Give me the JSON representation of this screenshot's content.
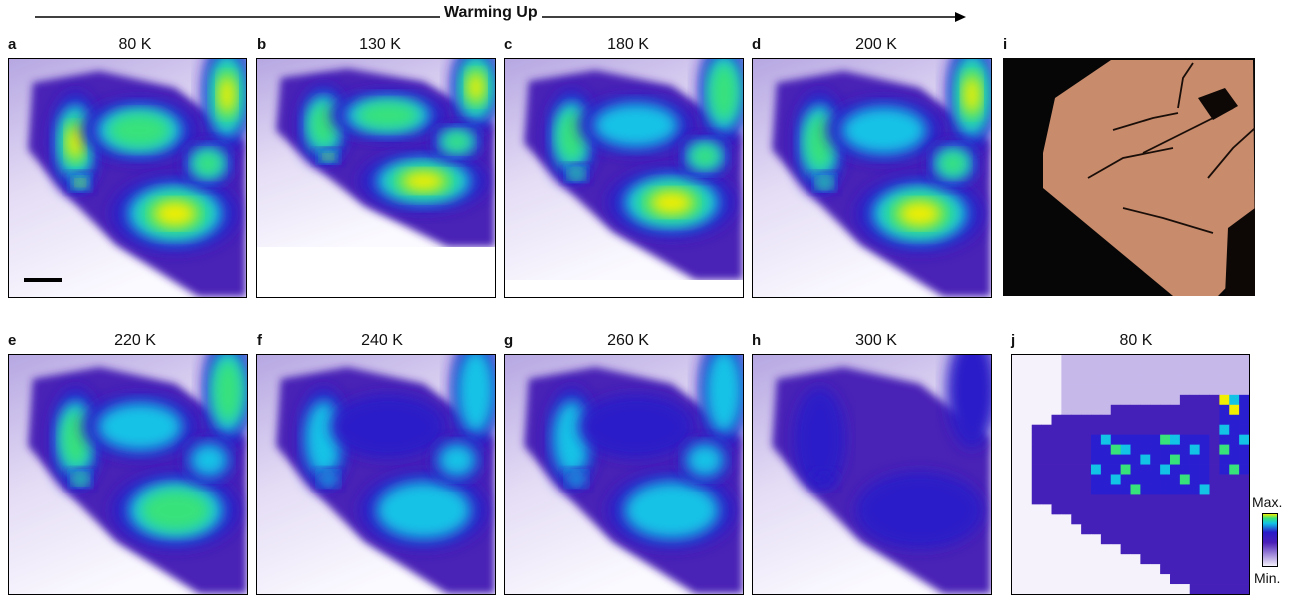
{
  "header": {
    "title": "Warming Up"
  },
  "panels": [
    {
      "letter": "a",
      "temp": "80 K",
      "kind": "map",
      "level": 1.0,
      "cut": 0
    },
    {
      "letter": "b",
      "temp": "130 K",
      "kind": "map",
      "level": 0.95,
      "cut": 0.21
    },
    {
      "letter": "c",
      "temp": "180 K",
      "kind": "map",
      "level": 0.85,
      "cut": 0.07
    },
    {
      "letter": "d",
      "temp": "200 K",
      "kind": "map",
      "level": 0.88,
      "cut": 0
    },
    {
      "letter": "i",
      "temp": "",
      "kind": "photo"
    },
    {
      "letter": "e",
      "temp": "220 K",
      "kind": "map",
      "level": 0.78,
      "cut": 0
    },
    {
      "letter": "f",
      "temp": "240 K",
      "kind": "map",
      "level": 0.52,
      "cut": 0
    },
    {
      "letter": "g",
      "temp": "260 K",
      "kind": "map",
      "level": 0.5,
      "cut": 0
    },
    {
      "letter": "h",
      "temp": "300 K",
      "kind": "map",
      "level": 0.15,
      "cut": 0
    },
    {
      "letter": "j",
      "temp": "80 K",
      "kind": "pixel"
    }
  ],
  "colorbar": {
    "max_label": "Max.",
    "min_label": "Min."
  },
  "colors": {
    "low": "#f4f0fb",
    "mid": "#4a1fb8",
    "deep": "#2a1cc8",
    "cyan": "#12c3e6",
    "green": "#37e27a",
    "yellow": "#f2ee00",
    "photo_bg": "#060606",
    "flake": "#c88b6c"
  }
}
